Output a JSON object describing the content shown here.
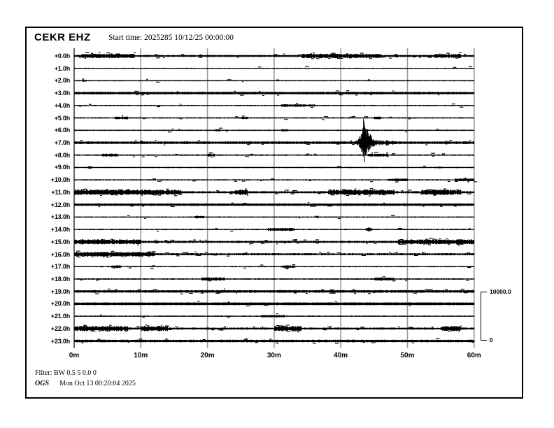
{
  "header": {
    "station": "CEKR EHZ",
    "start_time_label": "Start time: 2025285 10/12/25 00:00:00"
  },
  "footer": {
    "filter_label": "Filter: BW 0.5 5 0.0 0",
    "agency": "OGS",
    "timestamp": "Mon Oct 13 00:20:04 2025"
  },
  "scale_bar": {
    "max_label": "10000.0",
    "min_label": "0",
    "counts": 10000
  },
  "colors": {
    "trace": "#000000",
    "grid": "#9a9a9a",
    "background": "#ffffff",
    "text": "#000000"
  },
  "chart_data": {
    "type": "line",
    "subtype": "helicorder-seismogram",
    "title": "CEKR EHZ",
    "start_time": "2025285 10/12/25 00:00:00",
    "x_tick_labels": [
      "0m",
      "10m",
      "20m",
      "30m",
      "40m",
      "50m",
      "60m"
    ],
    "x_range_minutes": [
      0,
      60
    ],
    "minutes_per_line": 60,
    "amplitude_scale_counts": 10000,
    "row_labels": [
      "+0.0h",
      "+1.0h",
      "+2.0h",
      "+3.0h",
      "+4.0h",
      "+5.0h",
      "+6.0h",
      "+7.0h",
      "+8.0h",
      "+9.0h",
      "+10.0h",
      "+11.0h",
      "+12.0h",
      "+13.0h",
      "+14.0h",
      "+15.0h",
      "+16.0h",
      "+17.0h",
      "+18.0h",
      "+19.0h",
      "+20.0h",
      "+21.0h",
      "+22.0h",
      "+23.0h"
    ],
    "rows": [
      {
        "label": "+0.0h",
        "thickness": "medium",
        "noise_counts": 90,
        "dash_density": 0.4,
        "bursts": [
          [
            1,
            9
          ],
          [
            34,
            46
          ],
          [
            54,
            58
          ]
        ]
      },
      {
        "label": "+1.0h",
        "thickness": "thin",
        "noise_counts": 40,
        "dash_density": 0.06,
        "bursts": []
      },
      {
        "label": "+2.0h",
        "thickness": "thin",
        "noise_counts": 40,
        "dash_density": 0.06,
        "bursts": [
          [
            1.2,
            1.8
          ]
        ]
      },
      {
        "label": "+3.0h",
        "thickness": "thick",
        "noise_counts": 90,
        "dash_density": 0.3,
        "bursts": []
      },
      {
        "label": "+4.0h",
        "thickness": "thin",
        "noise_counts": 55,
        "dash_density": 0.1,
        "bursts": [
          [
            31,
            36
          ]
        ]
      },
      {
        "label": "+5.0h",
        "thickness": "thin",
        "noise_counts": 55,
        "dash_density": 0.1,
        "bursts": [
          [
            6,
            8
          ],
          [
            25,
            26
          ],
          [
            45,
            46
          ]
        ]
      },
      {
        "label": "+6.0h",
        "thickness": "thin",
        "noise_counts": 50,
        "dash_density": 0.08,
        "bursts": [
          [
            21,
            22
          ],
          [
            31,
            32
          ]
        ]
      },
      {
        "label": "+7.0h",
        "thickness": "thick",
        "noise_counts": 90,
        "dash_density": 0.25,
        "bursts": []
      },
      {
        "label": "+8.0h",
        "thickness": "thin",
        "noise_counts": 65,
        "dash_density": 0.12,
        "bursts": [
          [
            4,
            6.5
          ],
          [
            20,
            21
          ],
          [
            44,
            47
          ]
        ]
      },
      {
        "label": "+9.0h",
        "thickness": "thin",
        "noise_counts": 50,
        "dash_density": 0.07,
        "bursts": [
          [
            2,
            2.6
          ]
        ]
      },
      {
        "label": "+10.0h",
        "thickness": "thin",
        "noise_counts": 60,
        "dash_density": 0.1,
        "bursts": [
          [
            47,
            50
          ],
          [
            57,
            60
          ]
        ]
      },
      {
        "label": "+11.0h",
        "thickness": "medium",
        "noise_counts": 120,
        "dash_density": 0.5,
        "bursts": [
          [
            0,
            16
          ],
          [
            24,
            26
          ],
          [
            38,
            48
          ],
          [
            52,
            58
          ]
        ]
      },
      {
        "label": "+12.0h",
        "thickness": "thick",
        "noise_counts": 80,
        "dash_density": 0.25,
        "bursts": []
      },
      {
        "label": "+13.0h",
        "thickness": "thin",
        "noise_counts": 50,
        "dash_density": 0.07,
        "bursts": [
          [
            18,
            19.5
          ]
        ]
      },
      {
        "label": "+14.0h",
        "thickness": "thin",
        "noise_counts": 65,
        "dash_density": 0.1,
        "bursts": [
          [
            29,
            33
          ]
        ]
      },
      {
        "label": "+15.0h",
        "thickness": "medium",
        "noise_counts": 110,
        "dash_density": 0.45,
        "bursts": [
          [
            0,
            10
          ],
          [
            48.5,
            60
          ]
        ]
      },
      {
        "label": "+16.0h",
        "thickness": "medium",
        "noise_counts": 100,
        "dash_density": 0.35,
        "bursts": [
          [
            0,
            12
          ]
        ]
      },
      {
        "label": "+17.0h",
        "thickness": "thin",
        "noise_counts": 55,
        "dash_density": 0.1,
        "bursts": [
          [
            5.5,
            7
          ],
          [
            31,
            33
          ]
        ]
      },
      {
        "label": "+18.0h",
        "thickness": "thin",
        "noise_counts": 70,
        "dash_density": 0.12,
        "bursts": [
          [
            19,
            22.5
          ],
          [
            45,
            48
          ]
        ]
      },
      {
        "label": "+19.0h",
        "thickness": "thick",
        "noise_counts": 100,
        "dash_density": 0.35,
        "bursts": []
      },
      {
        "label": "+20.0h",
        "thickness": "heavy",
        "noise_counts": 70,
        "dash_density": 0.12,
        "bursts": []
      },
      {
        "label": "+21.0h",
        "thickness": "thin",
        "noise_counts": 50,
        "dash_density": 0.07,
        "bursts": [
          [
            28,
            31.5
          ]
        ]
      },
      {
        "label": "+22.0h",
        "thickness": "medium",
        "noise_counts": 110,
        "dash_density": 0.45,
        "bursts": [
          [
            0,
            8
          ],
          [
            10,
            14
          ],
          [
            30,
            34
          ],
          [
            55,
            58
          ]
        ]
      },
      {
        "label": "+23.0h",
        "thickness": "thick",
        "noise_counts": 90,
        "dash_density": 0.22,
        "bursts": []
      }
    ],
    "events": [
      {
        "row": 7,
        "minute": 43.4,
        "type": "earthquake",
        "major": true,
        "amp_up_counts": 4900,
        "amp_down_counts": 4000,
        "coda_minutes": 3
      },
      {
        "row": 7,
        "minute": 55.8,
        "type": "blip",
        "amp_counts": 350,
        "width_minutes": 0.9
      },
      {
        "row": 14,
        "minute": 44.2,
        "type": "blip",
        "amp_counts": 450,
        "width_minutes": 1.2
      },
      {
        "row": 13,
        "minute": 18.4,
        "type": "blip",
        "amp_counts": 260,
        "width_minutes": 1.0
      },
      {
        "row": 9,
        "minute": 54.8,
        "type": "blip",
        "amp_counts": 200,
        "width_minutes": 0.6
      }
    ]
  }
}
